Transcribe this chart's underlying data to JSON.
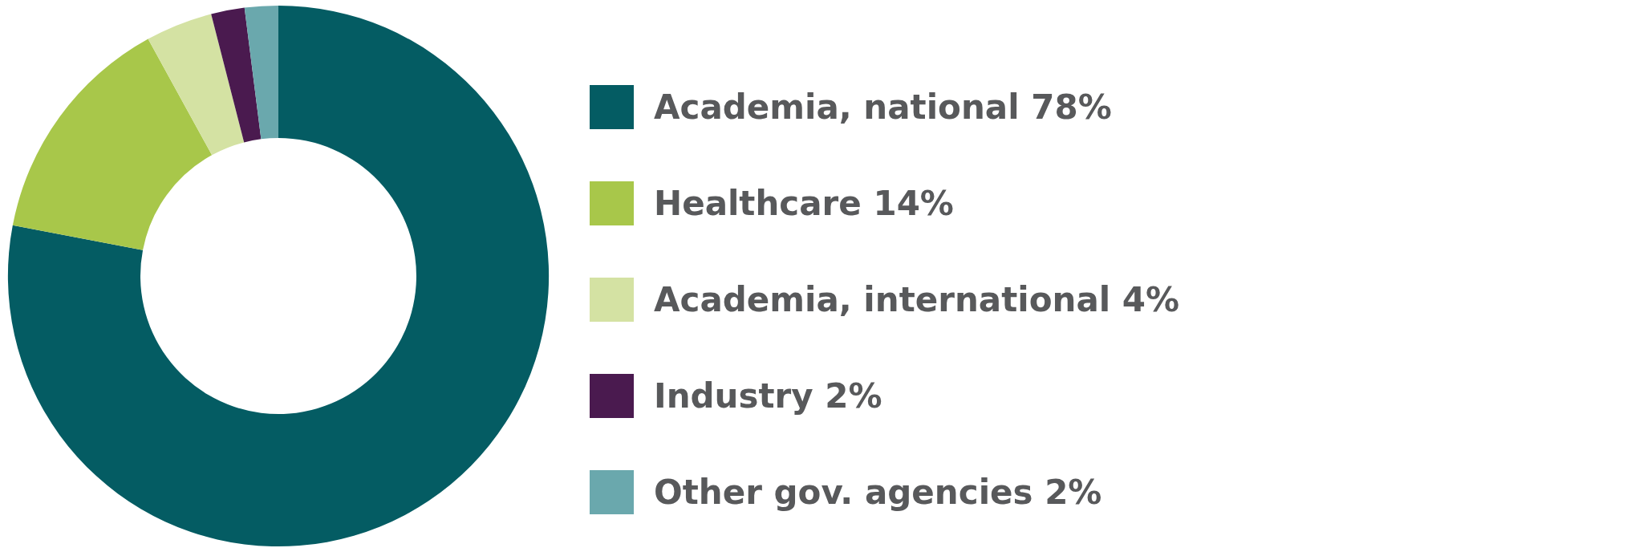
{
  "chart_data": {
    "type": "donut",
    "categories": [
      "Academia, national",
      "Healthcare",
      "Academia, international",
      "Industry",
      "Other gov. agencies"
    ],
    "values": [
      78,
      14,
      4,
      2,
      2
    ],
    "value_labels": [
      "78%",
      "14%",
      "4%",
      "2%",
      "2%"
    ],
    "colors": [
      "#045c63",
      "#a8c74a",
      "#d4e2a3",
      "#4a1a4f",
      "#6aa8ad"
    ],
    "legend": "right"
  }
}
